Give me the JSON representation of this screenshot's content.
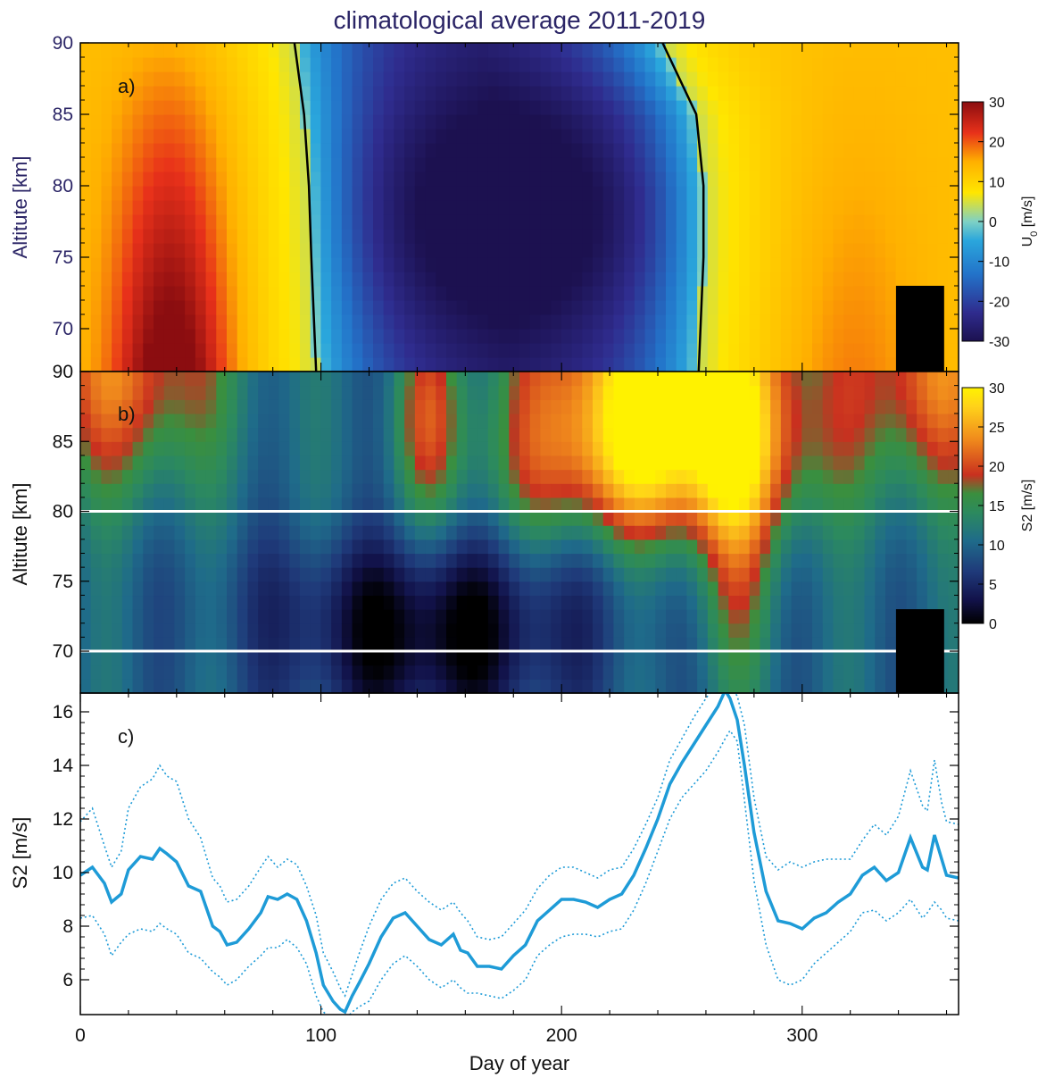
{
  "figure": {
    "title": "climatological average 2011-2019",
    "xlabel": "Day of year",
    "x_ticks": [
      "0",
      "100",
      "200",
      "300"
    ]
  },
  "colors": {
    "line": "#1e9bd7",
    "title": "#2b2566",
    "mask": "#000000",
    "white_line": "#ffffff"
  },
  "chart_data": [
    {
      "type": "heatmap",
      "panel_label": "a)",
      "ylabel": "Altitute [km]",
      "y_ticks": [
        "70",
        "75",
        "80",
        "85",
        "90"
      ],
      "xlim": [
        0,
        365
      ],
      "ylim": [
        67,
        90
      ],
      "colorbar": {
        "label_main": "U",
        "label_sub": "0",
        "label_unit": " [m/s]",
        "range": [
          -30,
          30
        ],
        "ticks": [
          "30",
          "20",
          "10",
          "0",
          "-10",
          "-20",
          "-30"
        ],
        "colormap": "rainbow"
      },
      "zero_contour": {
        "left_day": [
          [
            67,
            98
          ],
          [
            75,
            96
          ],
          [
            80,
            95
          ],
          [
            85,
            93
          ],
          [
            90,
            89
          ]
        ],
        "right_day": [
          [
            67,
            257
          ],
          [
            75,
            259
          ],
          [
            80,
            259
          ],
          [
            85,
            256
          ],
          [
            90,
            242
          ]
        ]
      },
      "jet_maxima": [
        {
          "day": 38,
          "alt": 70,
          "value": 28
        },
        {
          "day": 168,
          "alt": 78,
          "value": -30
        }
      ],
      "masked_region": {
        "x": [
          339,
          359
        ],
        "y": [
          67,
          73
        ]
      }
    },
    {
      "type": "heatmap",
      "panel_label": "b)",
      "ylabel": "Altitute [km]",
      "y_ticks": [
        "70",
        "75",
        "80",
        "85",
        "90"
      ],
      "xlim": [
        0,
        365
      ],
      "ylim": [
        67,
        90
      ],
      "colorbar": {
        "label": "S2 [m/s]",
        "range": [
          0,
          30
        ],
        "ticks": [
          "30",
          "25",
          "20",
          "15",
          "10",
          "5",
          "0"
        ],
        "colormap": "ocean-yellow"
      },
      "white_lines_alt": [
        70,
        80
      ],
      "masked_region": {
        "x": [
          339,
          359
        ],
        "y": [
          67,
          73
        ]
      }
    },
    {
      "type": "line",
      "panel_label": "c)",
      "ylabel": "S2 [m/s]",
      "y_ticks": [
        "6",
        "8",
        "10",
        "12",
        "14",
        "16"
      ],
      "xlim": [
        0,
        365
      ],
      "ylim": [
        4.7,
        16.7
      ],
      "series": [
        {
          "style": "solid",
          "x": [
            0,
            5,
            10,
            13,
            17,
            20,
            25,
            30,
            33,
            36,
            40,
            45,
            50,
            55,
            58,
            61,
            65,
            70,
            75,
            78,
            82,
            86,
            90,
            94,
            98,
            101,
            105,
            108,
            110,
            113,
            116,
            120,
            125,
            130,
            135,
            140,
            145,
            150,
            155,
            158,
            161,
            165,
            170,
            175,
            180,
            185,
            190,
            195,
            200,
            205,
            210,
            215,
            220,
            225,
            230,
            235,
            240,
            245,
            250,
            255,
            260,
            265,
            268,
            270,
            273,
            276,
            280,
            285,
            290,
            295,
            300,
            305,
            310,
            315,
            320,
            325,
            330,
            335,
            340,
            345,
            350,
            352,
            355,
            358,
            360,
            365
          ],
          "values": [
            9.9,
            10.2,
            9.6,
            8.9,
            9.2,
            10.1,
            10.6,
            10.5,
            10.9,
            10.7,
            10.4,
            9.5,
            9.3,
            8.0,
            7.8,
            7.3,
            7.4,
            7.9,
            8.5,
            9.1,
            9.0,
            9.2,
            9.0,
            8.2,
            7.0,
            5.8,
            5.2,
            4.9,
            4.8,
            5.4,
            5.9,
            6.6,
            7.6,
            8.3,
            8.5,
            8.0,
            7.5,
            7.3,
            7.7,
            7.1,
            7.0,
            6.5,
            6.5,
            6.4,
            6.9,
            7.3,
            8.2,
            8.6,
            9.0,
            9.0,
            8.9,
            8.7,
            9.0,
            9.2,
            9.9,
            10.9,
            12.0,
            13.3,
            14.1,
            14.8,
            15.5,
            16.2,
            16.8,
            16.5,
            15.7,
            14.0,
            11.5,
            9.3,
            8.2,
            8.1,
            7.9,
            8.3,
            8.5,
            8.9,
            9.2,
            9.9,
            10.2,
            9.7,
            10.0,
            11.3,
            10.2,
            10.1,
            11.4,
            10.5,
            9.9,
            9.8
          ]
        },
        {
          "style": "dotted",
          "x": [
            0,
            5,
            10,
            13,
            17,
            20,
            25,
            30,
            33,
            36,
            40,
            45,
            50,
            55,
            58,
            61,
            65,
            70,
            75,
            78,
            82,
            86,
            90,
            94,
            98,
            101,
            105,
            108,
            110,
            113,
            116,
            120,
            125,
            130,
            135,
            140,
            145,
            150,
            155,
            158,
            161,
            165,
            170,
            175,
            180,
            185,
            190,
            195,
            200,
            205,
            210,
            215,
            220,
            225,
            230,
            235,
            240,
            245,
            250,
            255,
            260,
            265,
            268,
            270,
            273,
            276,
            280,
            285,
            290,
            295,
            300,
            305,
            310,
            315,
            320,
            325,
            330,
            335,
            340,
            345,
            350,
            352,
            355,
            358,
            360,
            365
          ],
          "values": [
            11.9,
            12.4,
            11.0,
            10.2,
            10.8,
            12.4,
            13.2,
            13.5,
            14.0,
            13.6,
            13.4,
            12.0,
            11.3,
            9.8,
            9.5,
            8.9,
            9.0,
            9.5,
            10.2,
            10.6,
            10.2,
            10.5,
            10.3,
            9.5,
            8.4,
            7.0,
            6.3,
            5.7,
            5.4,
            6.2,
            7.0,
            8.0,
            9.0,
            9.6,
            9.8,
            9.3,
            8.9,
            8.6,
            8.9,
            8.5,
            8.2,
            7.6,
            7.5,
            7.6,
            8.1,
            8.6,
            9.4,
            9.9,
            10.2,
            10.2,
            10.0,
            9.8,
            10.1,
            10.2,
            10.9,
            11.8,
            12.8,
            14.2,
            15.0,
            15.8,
            16.5,
            17.1,
            17.2,
            16.9,
            16.6,
            15.5,
            12.8,
            10.6,
            10.1,
            10.4,
            10.2,
            10.4,
            10.5,
            10.5,
            10.5,
            11.2,
            11.8,
            11.4,
            12.1,
            13.8,
            12.5,
            12.3,
            14.2,
            12.6,
            11.9,
            11.8
          ]
        },
        {
          "style": "dotted",
          "x": [
            0,
            5,
            10,
            13,
            17,
            20,
            25,
            30,
            33,
            36,
            40,
            45,
            50,
            55,
            58,
            61,
            65,
            70,
            75,
            78,
            82,
            86,
            90,
            94,
            98,
            101,
            105,
            108,
            110,
            113,
            116,
            120,
            125,
            130,
            135,
            140,
            145,
            150,
            155,
            158,
            161,
            165,
            170,
            175,
            180,
            185,
            190,
            195,
            200,
            205,
            210,
            215,
            220,
            225,
            230,
            235,
            240,
            245,
            250,
            255,
            260,
            265,
            268,
            270,
            273,
            276,
            280,
            285,
            290,
            295,
            300,
            305,
            310,
            315,
            320,
            325,
            330,
            335,
            340,
            345,
            350,
            352,
            355,
            358,
            360,
            365
          ],
          "values": [
            8.3,
            8.4,
            7.7,
            6.9,
            7.4,
            7.7,
            7.9,
            7.8,
            8.1,
            7.9,
            7.7,
            7.0,
            6.8,
            6.3,
            6.1,
            5.8,
            6.0,
            6.5,
            6.9,
            7.2,
            7.2,
            7.5,
            7.2,
            6.6,
            5.4,
            4.8,
            4.5,
            4.5,
            4.5,
            4.8,
            5.0,
            5.2,
            6.0,
            6.6,
            6.9,
            6.5,
            6.0,
            5.7,
            6.0,
            5.7,
            5.5,
            5.5,
            5.4,
            5.3,
            5.6,
            6.0,
            6.9,
            7.3,
            7.6,
            7.7,
            7.7,
            7.6,
            7.8,
            7.9,
            8.6,
            9.6,
            10.8,
            12.0,
            12.8,
            13.3,
            13.8,
            14.5,
            15.0,
            15.3,
            14.9,
            12.7,
            9.7,
            7.3,
            6.0,
            5.8,
            6.0,
            6.6,
            7.0,
            7.4,
            7.8,
            8.5,
            8.6,
            8.2,
            8.5,
            9.0,
            8.3,
            8.5,
            8.9,
            8.6,
            8.3,
            8.2
          ]
        }
      ]
    }
  ]
}
